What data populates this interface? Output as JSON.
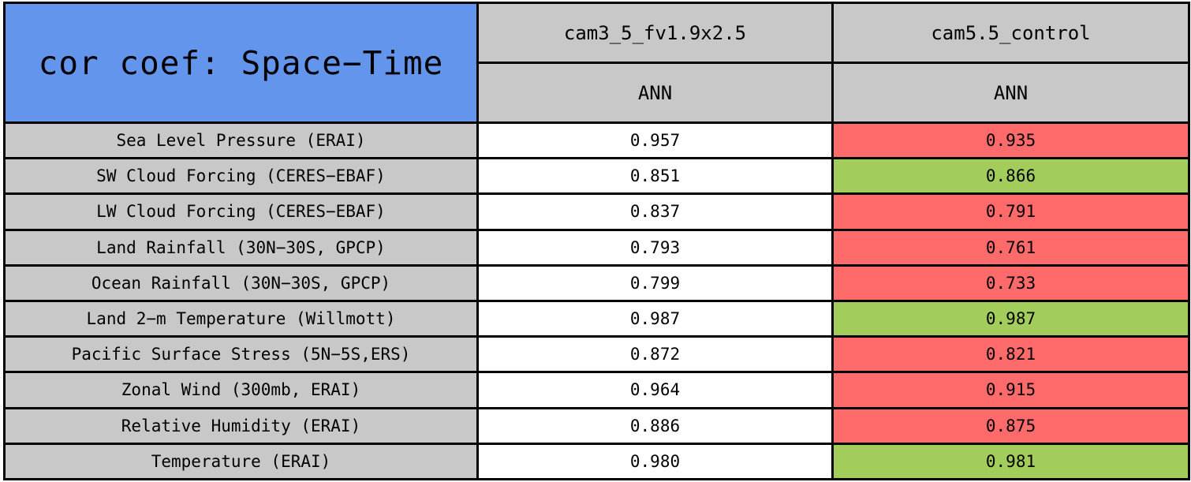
{
  "table": {
    "title": "cor coef: Space−Time",
    "columns": [
      {
        "model": "cam3_5_fv1.9x2.5",
        "season": "ANN"
      },
      {
        "model": "cam5.5_control",
        "season": "ANN"
      }
    ],
    "rows": [
      {
        "variable": "Sea Level Pressure (ERAI)",
        "values": [
          {
            "value": "0.957",
            "highlight": "none"
          },
          {
            "value": "0.935",
            "highlight": "red"
          }
        ]
      },
      {
        "variable": "SW Cloud Forcing (CERES−EBAF)",
        "values": [
          {
            "value": "0.851",
            "highlight": "none"
          },
          {
            "value": "0.866",
            "highlight": "green"
          }
        ]
      },
      {
        "variable": "LW Cloud Forcing (CERES−EBAF)",
        "values": [
          {
            "value": "0.837",
            "highlight": "none"
          },
          {
            "value": "0.791",
            "highlight": "red"
          }
        ]
      },
      {
        "variable": "Land Rainfall (30N−30S, GPCP)",
        "values": [
          {
            "value": "0.793",
            "highlight": "none"
          },
          {
            "value": "0.761",
            "highlight": "red"
          }
        ]
      },
      {
        "variable": "Ocean Rainfall (30N−30S, GPCP)",
        "values": [
          {
            "value": "0.799",
            "highlight": "none"
          },
          {
            "value": "0.733",
            "highlight": "red"
          }
        ]
      },
      {
        "variable": "Land 2−m Temperature (Willmott)",
        "values": [
          {
            "value": "0.987",
            "highlight": "none"
          },
          {
            "value": "0.987",
            "highlight": "green"
          }
        ]
      },
      {
        "variable": "Pacific Surface Stress (5N−5S,ERS)",
        "values": [
          {
            "value": "0.872",
            "highlight": "none"
          },
          {
            "value": "0.821",
            "highlight": "red"
          }
        ]
      },
      {
        "variable": "Zonal Wind (300mb, ERAI)",
        "values": [
          {
            "value": "0.964",
            "highlight": "none"
          },
          {
            "value": "0.915",
            "highlight": "red"
          }
        ]
      },
      {
        "variable": "Relative Humidity (ERAI)",
        "values": [
          {
            "value": "0.886",
            "highlight": "none"
          },
          {
            "value": "0.875",
            "highlight": "red"
          }
        ]
      },
      {
        "variable": "Temperature (ERAI)",
        "values": [
          {
            "value": "0.980",
            "highlight": "none"
          },
          {
            "value": "0.981",
            "highlight": "green"
          }
        ]
      }
    ],
    "colors": {
      "title_bg": "#6495ED",
      "header_bg": "#C8C8C8",
      "value_bg": "#FFFFFF",
      "worse_bg": "#FF6A6A",
      "better_bg": "#A2CD5A",
      "border_color": "#000000",
      "text_color": "#000000"
    }
  },
  "chart_data": {
    "type": "table",
    "title": "cor coef: Space−Time",
    "series": [
      {
        "name": "cam3_5_fv1.9x2.5 (ANN)",
        "values": [
          0.957,
          0.851,
          0.837,
          0.793,
          0.799,
          0.987,
          0.872,
          0.964,
          0.886,
          0.98
        ]
      },
      {
        "name": "cam5.5_control (ANN)",
        "values": [
          0.935,
          0.866,
          0.791,
          0.761,
          0.733,
          0.987,
          0.821,
          0.915,
          0.875,
          0.981
        ]
      }
    ],
    "categories": [
      "Sea Level Pressure (ERAI)",
      "SW Cloud Forcing (CERES−EBAF)",
      "LW Cloud Forcing (CERES−EBAF)",
      "Land Rainfall (30N−30S, GPCP)",
      "Ocean Rainfall (30N−30S, GPCP)",
      "Land 2−m Temperature (Willmott)",
      "Pacific Surface Stress (5N−5S,ERS)",
      "Zonal Wind (300mb, ERAI)",
      "Relative Humidity (ERAI)",
      "Temperature (ERAI)"
    ],
    "cell_highlights_cam5_5_control": [
      "red",
      "green",
      "red",
      "red",
      "red",
      "green",
      "red",
      "red",
      "red",
      "green"
    ],
    "layout_hints": {
      "highlight_red_means": "cam5.5_control value shaded red",
      "highlight_green_means": "cam5.5_control value shaded green",
      "first_value_column_unshaded": true
    }
  }
}
